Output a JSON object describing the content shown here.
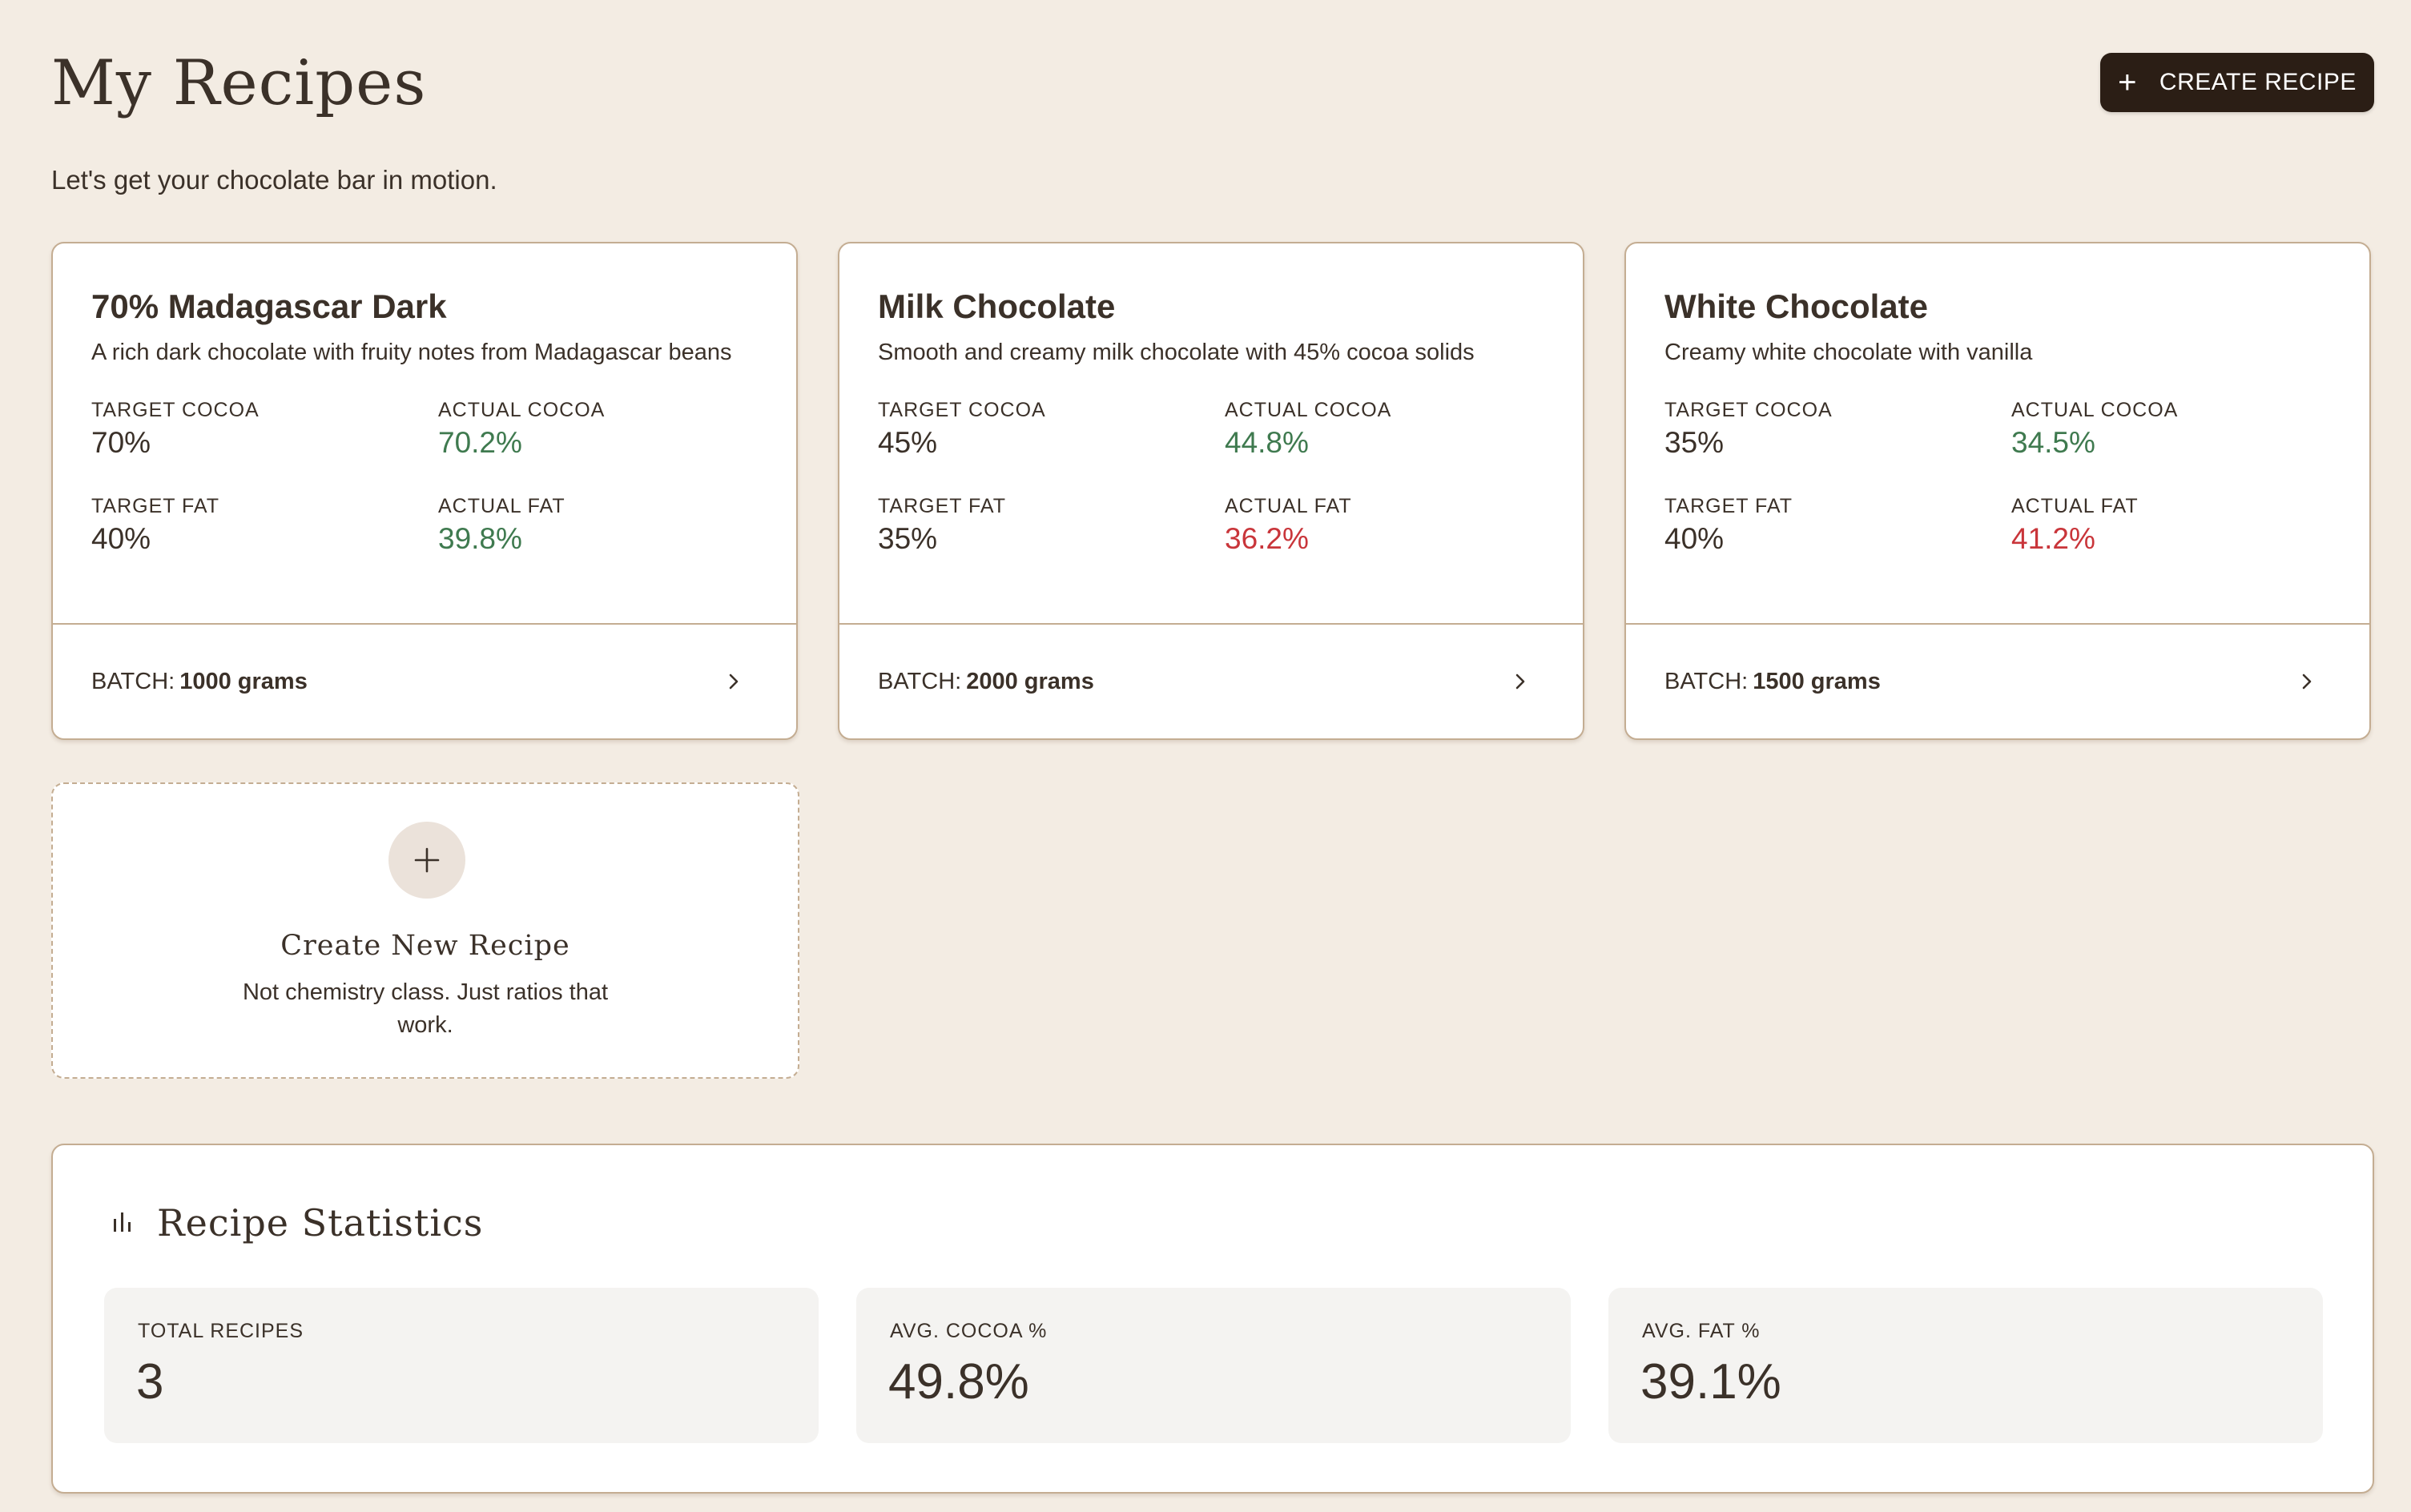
{
  "header": {
    "title": "My Recipes",
    "create_button_label": "CREATE RECIPE",
    "subtitle": "Let's get your chocolate bar in motion."
  },
  "labels": {
    "target_cocoa": "TARGET COCOA",
    "actual_cocoa": "ACTUAL COCOA",
    "target_fat": "TARGET FAT",
    "actual_fat": "ACTUAL FAT",
    "batch": "BATCH:"
  },
  "recipes": [
    {
      "name": "70% Madagascar Dark",
      "description": "A rich dark chocolate with fruity notes from Madagascar beans",
      "target_cocoa": "70%",
      "actual_cocoa": "70.2%",
      "target_fat": "40%",
      "actual_fat": "39.8%",
      "batch": "1000 grams"
    },
    {
      "name": "Milk Chocolate",
      "description": "Smooth and creamy milk chocolate with 45% cocoa solids",
      "target_cocoa": "45%",
      "actual_cocoa": "44.8%",
      "target_fat": "35%",
      "actual_fat": "36.2%",
      "batch": "2000 grams"
    },
    {
      "name": "White Chocolate",
      "description": "Creamy white chocolate with vanilla",
      "target_cocoa": "35%",
      "actual_cocoa": "34.5%",
      "target_fat": "40%",
      "actual_fat": "41.2%",
      "batch": "1500 grams"
    }
  ],
  "new_recipe_card": {
    "title": "Create New Recipe",
    "description": "Not chemistry class. Just ratios that work."
  },
  "statistics": {
    "title": "Recipe Statistics",
    "tiles": [
      {
        "label": "TOTAL RECIPES",
        "value": "3"
      },
      {
        "label": "AVG. COCOA %",
        "value": "49.8%"
      },
      {
        "label": "AVG. FAT %",
        "value": "39.1%"
      }
    ]
  },
  "colors": {
    "background": "#f3ece3",
    "primary_button": "#2b1e15",
    "card_border": "#c4ad92",
    "on_target": "#3f7a4f",
    "off_target": "#c9353a",
    "text": "#3b3129"
  },
  "icons": {
    "create_button": "plus-icon",
    "card_footer": "chevron-right-icon",
    "new_recipe": "plus-icon",
    "statistics": "bar-chart-icon"
  }
}
